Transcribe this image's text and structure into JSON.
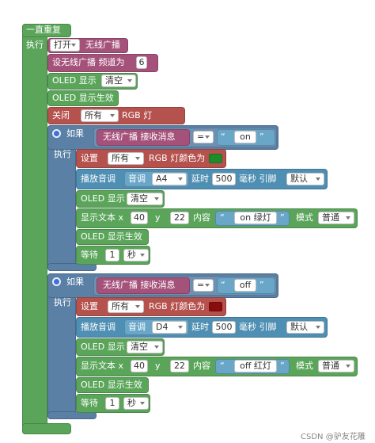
{
  "forever": {
    "label": "一直重复",
    "do": "执行"
  },
  "top_blocks": {
    "radio_on": {
      "dropdown": "打开",
      "label": "无线广播"
    },
    "radio_channel": {
      "label": "设无线广播 频道为",
      "value": "6"
    },
    "oled_clear": {
      "label": "OLED 显示",
      "dropdown": "清空"
    },
    "oled_show": {
      "label": "OLED 显示生效"
    },
    "rgb_off": {
      "label": "关闭",
      "dropdown": "所有",
      "suffix": "RGB 灯"
    }
  },
  "if_blocks": [
    {
      "if": "如果",
      "do": "执行",
      "condition": {
        "label": "无线广播 接收消息",
        "op": "=",
        "open_quote": "“",
        "text": "on",
        "close_quote": "”"
      },
      "rgb": {
        "label": "设置",
        "dropdown": "所有",
        "suffix": "RGB 灯颜色为",
        "color": "#1e8c2a"
      },
      "tone": {
        "label": "播放音调",
        "note_label": "音调",
        "note": "A4",
        "delay_label": "延时",
        "delay": 500,
        "pin_label": "毫秒 引脚",
        "pin": "默认"
      },
      "oled_clear": {
        "label": "OLED 显示",
        "dropdown": "清空"
      },
      "text": {
        "label": "显示文本 x",
        "x": 40,
        "y_label": "y",
        "y": 22,
        "content_label": "内容",
        "open_quote": "“",
        "content": "on 绿灯",
        "close_quote": "”",
        "mode_label": "模式",
        "mode": "普通"
      },
      "oled_show": {
        "label": "OLED 显示生效"
      },
      "wait": {
        "label": "等待",
        "value": 1,
        "unit": "秒"
      }
    },
    {
      "if": "如果",
      "do": "执行",
      "condition": {
        "label": "无线广播 接收消息",
        "op": "=",
        "open_quote": "“",
        "text": "off",
        "close_quote": "”"
      },
      "rgb": {
        "label": "设置",
        "dropdown": "所有",
        "suffix": "RGB 灯颜色为",
        "color": "#8a0d0d"
      },
      "tone": {
        "label": "播放音调",
        "note_label": "音调",
        "note": "D4",
        "delay_label": "延时",
        "delay": 500,
        "pin_label": "毫秒 引脚",
        "pin": "默认"
      },
      "oled_clear": {
        "label": "OLED 显示",
        "dropdown": "清空"
      },
      "text": {
        "label": "显示文本 x",
        "x": 40,
        "y_label": "y",
        "y": 22,
        "content_label": "内容",
        "open_quote": "“",
        "content": "off 红灯",
        "close_quote": "”",
        "mode_label": "模式",
        "mode": "普通"
      },
      "oled_show": {
        "label": "OLED 显示生效"
      },
      "wait": {
        "label": "等待",
        "value": 1,
        "unit": "秒"
      }
    }
  ],
  "watermark": "CSDN @驴友花雕"
}
